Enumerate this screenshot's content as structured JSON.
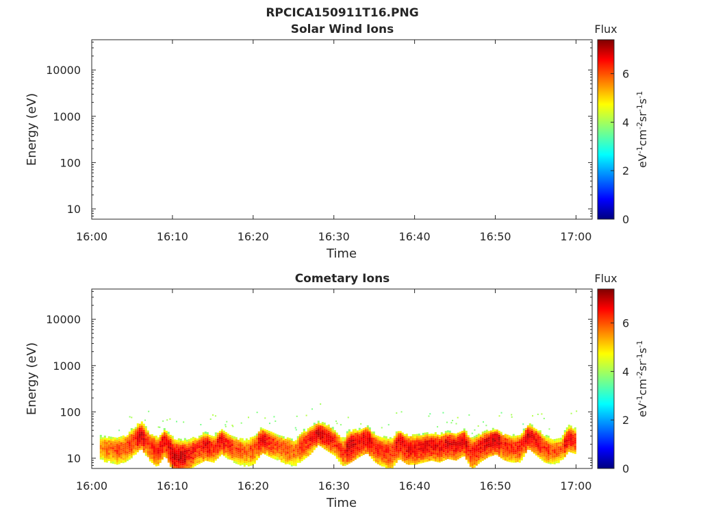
{
  "figure": {
    "title": "RPCICA150911T16.PNG"
  },
  "chart_data": [
    {
      "type": "heatmap",
      "title": "Solar Wind Ions",
      "xlabel": "Time",
      "ylabel": "Energy (eV)",
      "x_ticks": [
        "16:00",
        "16:10",
        "16:20",
        "16:30",
        "16:40",
        "16:50",
        "17:00"
      ],
      "xlim": [
        "16:00",
        "17:02"
      ],
      "y_scale": "log",
      "y_ticks": [
        "10",
        "100",
        "1000",
        "10000"
      ],
      "ylim": [
        6,
        45000
      ],
      "colorbar": {
        "title": "Flux",
        "unit_label": "eV-1cm-2sr-1s-1",
        "range": [
          0,
          7.4
        ],
        "ticks": [
          "0",
          "2",
          "4",
          "6"
        ],
        "colormap": "jet"
      },
      "band": []
    },
    {
      "type": "heatmap",
      "title": "Cometary Ions",
      "xlabel": "Time",
      "ylabel": "Energy (eV)",
      "x_ticks": [
        "16:00",
        "16:10",
        "16:20",
        "16:30",
        "16:40",
        "16:50",
        "17:00"
      ],
      "xlim": [
        "16:00",
        "17:02"
      ],
      "y_scale": "log",
      "y_ticks": [
        "10",
        "100",
        "1000",
        "10000"
      ],
      "ylim": [
        6,
        45000
      ],
      "colorbar": {
        "title": "Flux",
        "unit_label": "eV-1cm-2sr-1s-1",
        "range": [
          0,
          7.4
        ],
        "ticks": [
          "0",
          "2",
          "4",
          "6"
        ],
        "colormap": "jet"
      },
      "band_columns": [
        "time",
        "peak_energy_eV",
        "low_energy_eV",
        "high_energy_eV",
        "peak_flux"
      ],
      "band": [
        [
          "16:01",
          18,
          10,
          30,
          5.5
        ],
        [
          "16:02",
          18,
          10,
          28,
          5.8
        ],
        [
          "16:03",
          16,
          9,
          26,
          6.0
        ],
        [
          "16:04",
          18,
          10,
          30,
          6.0
        ],
        [
          "16:05",
          25,
          13,
          40,
          6.2
        ],
        [
          "16:06",
          35,
          20,
          55,
          6.8
        ],
        [
          "16:07",
          22,
          11,
          35,
          6.2
        ],
        [
          "16:08",
          15,
          8,
          25,
          6.4
        ],
        [
          "16:09",
          30,
          14,
          40,
          6.6
        ],
        [
          "16:10",
          12,
          6,
          22,
          6.8
        ],
        [
          "16:11",
          12,
          6,
          20,
          6.9
        ],
        [
          "16:12",
          14,
          7,
          22,
          6.5
        ],
        [
          "16:13",
          18,
          9,
          28,
          6.2
        ],
        [
          "16:14",
          22,
          11,
          32,
          6.6
        ],
        [
          "16:15",
          18,
          10,
          28,
          6.2
        ],
        [
          "16:16",
          30,
          15,
          40,
          6.6
        ],
        [
          "16:17",
          20,
          11,
          30,
          6.3
        ],
        [
          "16:18",
          16,
          9,
          26,
          6.0
        ],
        [
          "16:19",
          15,
          8,
          25,
          5.8
        ],
        [
          "16:20",
          18,
          9,
          28,
          6.0
        ],
        [
          "16:21",
          30,
          16,
          42,
          6.6
        ],
        [
          "16:22",
          25,
          13,
          36,
          6.3
        ],
        [
          "16:23",
          20,
          11,
          30,
          6.0
        ],
        [
          "16:24",
          18,
          9,
          27,
          6.0
        ],
        [
          "16:25",
          15,
          8,
          24,
          5.8
        ],
        [
          "16:26",
          22,
          11,
          35,
          6.2
        ],
        [
          "16:27",
          30,
          15,
          45,
          6.4
        ],
        [
          "16:28",
          38,
          24,
          55,
          6.8
        ],
        [
          "16:29",
          32,
          18,
          48,
          6.6
        ],
        [
          "16:30",
          25,
          14,
          38,
          6.3
        ],
        [
          "16:31",
          14,
          8,
          24,
          6.2
        ],
        [
          "16:32",
          22,
          10,
          35,
          6.8
        ],
        [
          "16:33",
          25,
          13,
          38,
          6.6
        ],
        [
          "16:34",
          30,
          16,
          45,
          6.7
        ],
        [
          "16:35",
          20,
          10,
          30,
          6.4
        ],
        [
          "16:36",
          16,
          8,
          26,
          6.2
        ],
        [
          "16:37",
          14,
          7,
          24,
          6.2
        ],
        [
          "16:38",
          30,
          12,
          38,
          6.6
        ],
        [
          "16:39",
          18,
          9,
          28,
          6.6
        ],
        [
          "16:40",
          18,
          9,
          28,
          6.5
        ],
        [
          "16:41",
          20,
          10,
          30,
          6.6
        ],
        [
          "16:42",
          22,
          11,
          32,
          6.6
        ],
        [
          "16:43",
          20,
          10,
          30,
          6.5
        ],
        [
          "16:44",
          24,
          12,
          34,
          6.7
        ],
        [
          "16:45",
          22,
          11,
          32,
          6.6
        ],
        [
          "16:46",
          28,
          14,
          38,
          6.7
        ],
        [
          "16:47",
          14,
          7,
          24,
          6.4
        ],
        [
          "16:48",
          20,
          10,
          30,
          6.5
        ],
        [
          "16:49",
          25,
          13,
          36,
          6.7
        ],
        [
          "16:50",
          30,
          15,
          40,
          6.8
        ],
        [
          "16:51",
          22,
          11,
          32,
          6.4
        ],
        [
          "16:52",
          18,
          10,
          28,
          6.2
        ],
        [
          "16:53",
          20,
          10,
          30,
          6.3
        ],
        [
          "16:54",
          35,
          20,
          50,
          6.8
        ],
        [
          "16:55",
          28,
          14,
          40,
          6.5
        ],
        [
          "16:56",
          18,
          10,
          28,
          6.2
        ],
        [
          "16:57",
          15,
          9,
          24,
          6.0
        ],
        [
          "16:58",
          16,
          10,
          26,
          5.9
        ],
        [
          "16:59",
          30,
          17,
          45,
          6.6
        ],
        [
          "17:00",
          25,
          15,
          38,
          6.4
        ]
      ]
    }
  ]
}
